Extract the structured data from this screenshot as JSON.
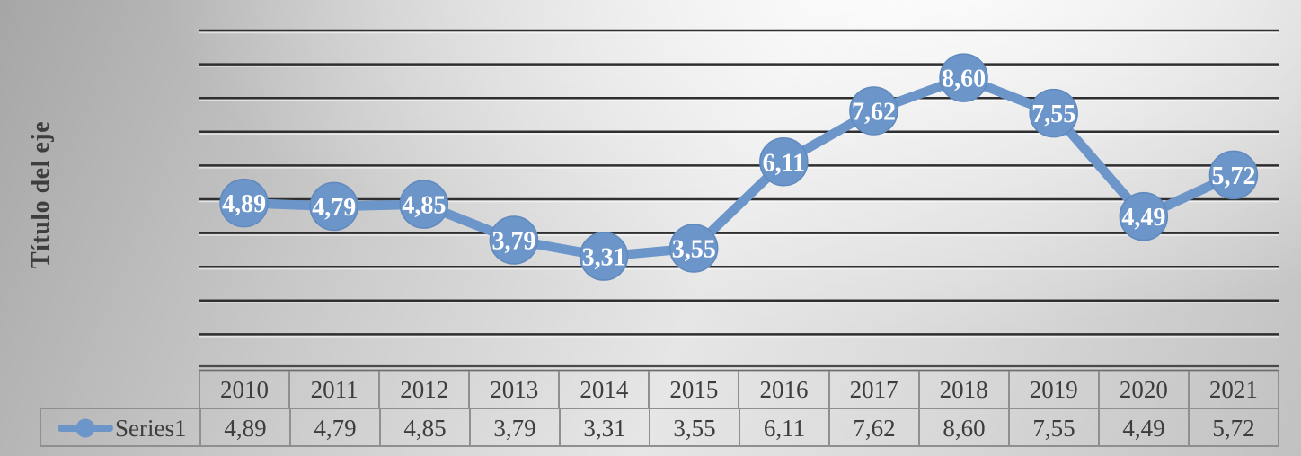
{
  "chart": {
    "axis_title": "Título del eje",
    "legend": {
      "series_label": "Series1"
    },
    "colors": {
      "line": "#6c95ca",
      "marker_fill": "#6c95ca",
      "marker_edge": "#6089bd",
      "data_label_text": "#ffffff",
      "gridline": "#2f2f2f",
      "gridline_highlight": "rgba(255,255,255,0.55)",
      "axis_line": "#4a4a4a",
      "table_border": "#8f8f8f",
      "table_text": "#3d3d3d"
    }
  },
  "chart_data": {
    "type": "line",
    "title": "",
    "xlabel": "",
    "ylabel": "Título del eje",
    "categories": [
      "2010",
      "2011",
      "2012",
      "2013",
      "2014",
      "2015",
      "2016",
      "2017",
      "2018",
      "2019",
      "2020",
      "2021"
    ],
    "series": [
      {
        "name": "Series1",
        "values": [
          4.89,
          4.79,
          4.85,
          3.79,
          3.31,
          3.55,
          6.11,
          7.62,
          8.6,
          7.55,
          4.49,
          5.72
        ],
        "labels": [
          "4,89",
          "4,79",
          "4,85",
          "3,79",
          "3,31",
          "3,55",
          "6,11",
          "7,62",
          "8,60",
          "7,55",
          "4,49",
          "5,72"
        ]
      }
    ],
    "ylim": [
      0,
      10
    ],
    "gridline_step": 1,
    "grid": "horizontal",
    "markers": "large circles with value labels inside",
    "decimal_separator": ",",
    "legend_position": "bottom-left of data table",
    "data_table": true
  }
}
